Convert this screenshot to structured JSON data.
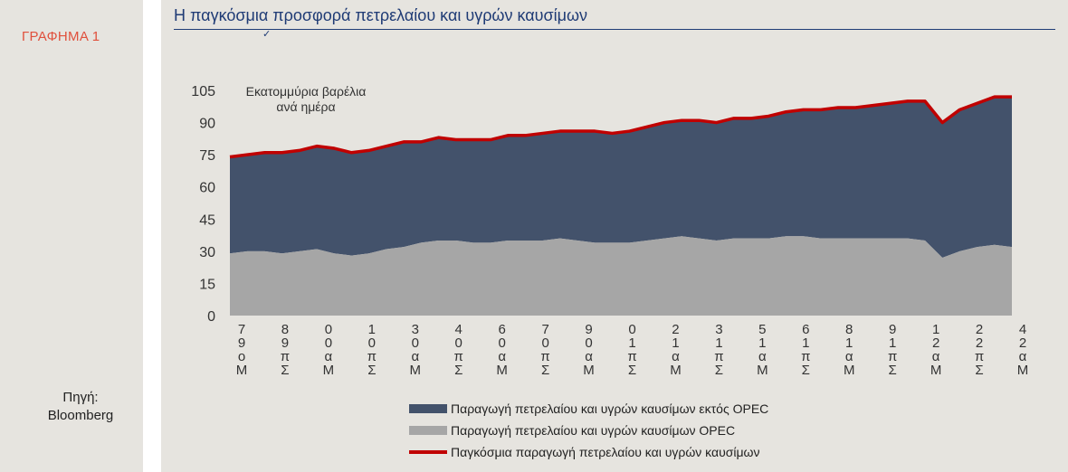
{
  "figure_label": "ΓΡΑΦΗΜΑ 1",
  "source": {
    "line1": "Πηγή:",
    "line2": "Bloomberg"
  },
  "colors": {
    "non_opec": "#43526b",
    "opec": "#a6a6a6",
    "world": "#c00000",
    "title": "#1f3b75",
    "figure_label": "#e0503c"
  },
  "chart_data": {
    "type": "area",
    "title": "Η παγκόσμια προσφορά πετρελαίου και υγρών καυσίμων",
    "ylabel": "Εκατομμύρια βαρέλια ανά ημέρα",
    "ylim": [
      0,
      105
    ],
    "yticks": [
      0,
      15,
      30,
      45,
      60,
      75,
      90,
      105
    ],
    "x": [
      1979,
      1980,
      1981,
      1982,
      1983,
      1984,
      1985,
      1986,
      1987,
      1988,
      1989,
      1990,
      1991,
      1992,
      1993,
      1994,
      1995,
      1996,
      1997,
      1998,
      1999,
      2000,
      2001,
      2002,
      2003,
      2004,
      2005,
      2006,
      2007,
      2008,
      2009,
      2010,
      2011,
      2012,
      2013,
      2014,
      2015,
      2016,
      2017,
      2018,
      2019,
      2020,
      2021,
      2022,
      2023,
      2024
    ],
    "xtick_labels": [
      "7\n9\nο\nΜ",
      "8\n9\nπ\nΣ",
      "0\n0\nα\nΜ",
      "1\n0\nπ\nΣ",
      "3\n0\nα\nΜ",
      "4\n0\nπ\nΣ",
      "6\n0\nα\nΜ",
      "7\n0\nπ\nΣ",
      "9\n0\nα\nΜ",
      "0\n1\nπ\nΣ",
      "2\n1\nα\nΜ",
      "3\n1\nπ\nΣ",
      "5\n1\nα\nΜ",
      "6\n1\nπ\nΣ",
      "8\n1\nα\nΜ",
      "9\n1\nπ\nΣ",
      "1\n2\nα\nΜ",
      "2\n2\nπ\nΣ",
      "4\n2\nα\nΜ"
    ],
    "series": [
      {
        "name": "Παραγωγή πετρελαίου και υγρών καυσίμων εκτός OPEC",
        "kind": "stacked-area",
        "values": [
          45,
          45,
          46,
          47,
          47,
          48,
          49,
          48,
          48,
          48,
          49,
          47,
          48,
          47,
          48,
          48,
          49,
          49,
          50,
          50,
          51,
          52,
          51,
          52,
          53,
          54,
          54,
          55,
          55,
          56,
          56,
          57,
          58,
          59,
          60,
          61,
          61,
          62,
          63,
          64,
          65,
          63,
          66,
          67,
          69,
          70
        ]
      },
      {
        "name": "Παραγωγή πετρελαίου και υγρών καυσίμων OPEC",
        "kind": "stacked-area",
        "values": [
          29,
          30,
          30,
          29,
          30,
          31,
          29,
          28,
          29,
          31,
          32,
          34,
          35,
          35,
          34,
          34,
          35,
          35,
          35,
          36,
          35,
          34,
          34,
          34,
          35,
          36,
          37,
          36,
          35,
          36,
          36,
          36,
          37,
          37,
          36,
          36,
          36,
          36,
          36,
          36,
          35,
          27,
          30,
          32,
          33,
          32
        ]
      },
      {
        "name": "Παγκόσμια παραγωγή πετρελαίου και υγρών καυσίμων",
        "kind": "line",
        "values": [
          74,
          75,
          76,
          76,
          77,
          79,
          78,
          76,
          77,
          79,
          81,
          81,
          83,
          82,
          82,
          82,
          84,
          84,
          85,
          86,
          86,
          86,
          85,
          86,
          88,
          90,
          91,
          91,
          90,
          92,
          92,
          93,
          95,
          96,
          96,
          97,
          97,
          98,
          99,
          100,
          100,
          90,
          96,
          99,
          102,
          102
        ]
      }
    ]
  }
}
